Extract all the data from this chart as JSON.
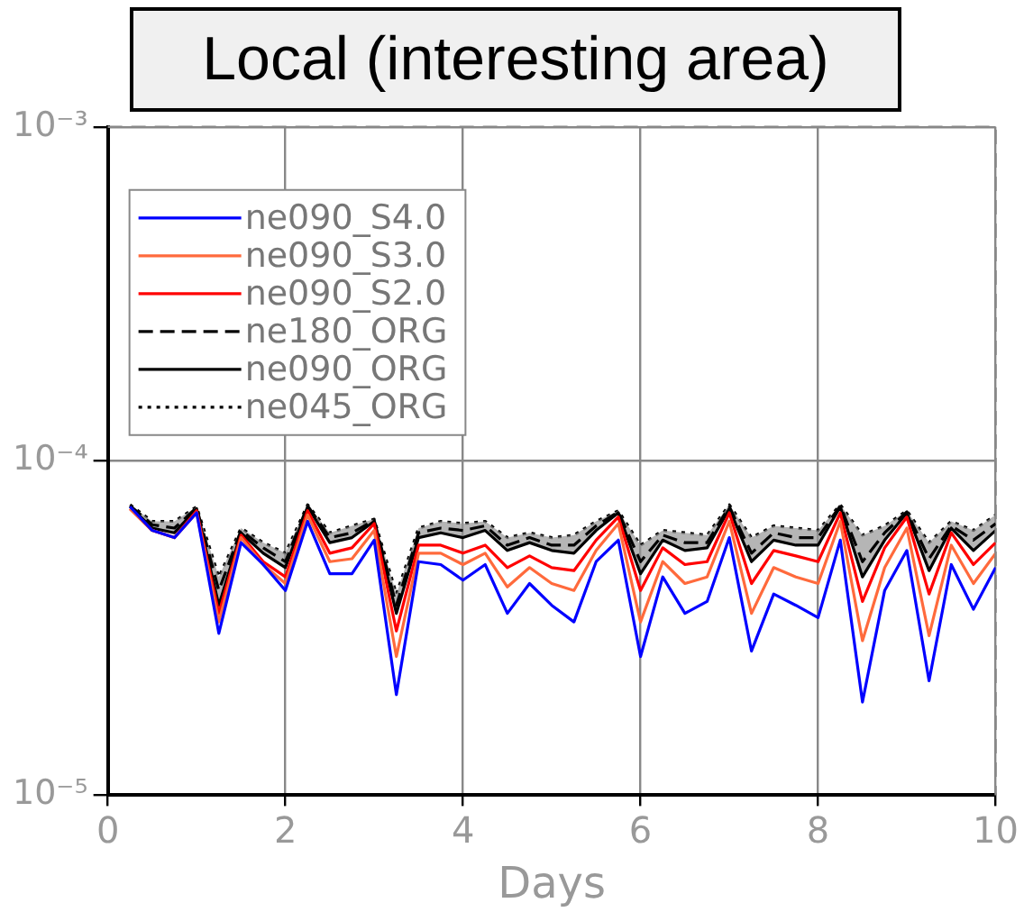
{
  "chart_data": {
    "type": "line",
    "title": "Local (interesting area)",
    "xlabel": "Days",
    "x": [
      0.25,
      0.5,
      0.75,
      1,
      1.25,
      1.5,
      1.75,
      2,
      2.25,
      2.5,
      2.75,
      3,
      3.25,
      3.5,
      3.75,
      4,
      4.25,
      4.5,
      4.75,
      5,
      5.25,
      5.5,
      5.75,
      6,
      6.25,
      6.5,
      6.75,
      7,
      7.25,
      7.5,
      7.75,
      8,
      8.25,
      8.5,
      8.75,
      9,
      9.25,
      9.5,
      9.75,
      10
    ],
    "xlim": [
      0,
      10
    ],
    "xticks": [
      0,
      2,
      4,
      6,
      8,
      10
    ],
    "ylim": [
      1e-05,
      0.001
    ],
    "yticks": [
      {
        "value": 1e-05,
        "label": "10⁻⁵"
      },
      {
        "value": 0.0001,
        "label": "10⁻⁴"
      },
      {
        "value": 0.001,
        "label": "10⁻³"
      }
    ],
    "log": "y",
    "grid": true,
    "legend": "top left",
    "series": [
      {
        "name": "ne090_S4.0",
        "color": "#0000ff",
        "line_style": "solid",
        "values": [
          7.3e-05,
          6.2e-05,
          5.9e-05,
          7e-05,
          3.05e-05,
          5.7e-05,
          4.9e-05,
          4.1e-05,
          6.6e-05,
          4.6e-05,
          4.6e-05,
          5.8e-05,
          2e-05,
          5e-05,
          4.9e-05,
          4.4e-05,
          4.9e-05,
          3.5e-05,
          4.3e-05,
          3.7e-05,
          3.3e-05,
          5e-05,
          5.8e-05,
          2.6e-05,
          4.5e-05,
          3.5e-05,
          3.8e-05,
          5.9e-05,
          2.7e-05,
          4e-05,
          3.7e-05,
          3.4e-05,
          5.8e-05,
          1.9e-05,
          4.1e-05,
          5.4e-05,
          2.2e-05,
          4.9e-05,
          3.6e-05,
          4.8e-05
        ]
      },
      {
        "name": "ne090_S3.0",
        "color": "#ff6a3c",
        "line_style": "solid",
        "values": [
          7.2e-05,
          6.2e-05,
          5.9e-05,
          7e-05,
          3.3e-05,
          5.9e-05,
          4.9e-05,
          4.3e-05,
          6.9e-05,
          5e-05,
          5.1e-05,
          6.2e-05,
          2.6e-05,
          5.3e-05,
          5.3e-05,
          4.9e-05,
          5.3e-05,
          4.2e-05,
          4.8e-05,
          4.3e-05,
          4.1e-05,
          5.4e-05,
          6.5e-05,
          3.3e-05,
          5e-05,
          4.3e-05,
          4.5e-05,
          6.6e-05,
          3.5e-05,
          4.8e-05,
          4.5e-05,
          4.3e-05,
          6.6e-05,
          2.9e-05,
          4.8e-05,
          6.3e-05,
          3e-05,
          5.6e-05,
          4.3e-05,
          5.3e-05
        ]
      },
      {
        "name": "ne090_S2.0",
        "color": "#ff0000",
        "line_style": "solid",
        "values": [
          7.2e-05,
          6.2e-05,
          5.9e-05,
          7.1e-05,
          3.5e-05,
          6e-05,
          5e-05,
          4.5e-05,
          7.1e-05,
          5.3e-05,
          5.5e-05,
          6.5e-05,
          3.1e-05,
          5.6e-05,
          5.6e-05,
          5.3e-05,
          5.6e-05,
          4.8e-05,
          5.2e-05,
          4.8e-05,
          4.7e-05,
          5.8e-05,
          6.8e-05,
          4.1e-05,
          5.5e-05,
          4.9e-05,
          5e-05,
          7e-05,
          4.3e-05,
          5.4e-05,
          5.2e-05,
          5e-05,
          7e-05,
          3.8e-05,
          5.5e-05,
          6.8e-05,
          4e-05,
          6.1e-05,
          4.9e-05,
          5.7e-05
        ]
      },
      {
        "name": "ne180_ORG",
        "color": "#000000",
        "line_style": "dashed",
        "values": [
          7.35e-05,
          6.45e-05,
          6.3e-05,
          7.25e-05,
          4.1e-05,
          6.2e-05,
          5.5e-05,
          5e-05,
          7.35e-05,
          5.9e-05,
          6.1e-05,
          6.65e-05,
          3.7e-05,
          6.1e-05,
          6.3e-05,
          6.2e-05,
          6.4e-05,
          5.6e-05,
          5.9e-05,
          5.6e-05,
          5.6e-05,
          6.4e-05,
          7.05e-05,
          5e-05,
          6e-05,
          5.7e-05,
          5.7e-05,
          7.3e-05,
          5.3e-05,
          6.1e-05,
          5.9e-05,
          5.9e-05,
          7.35e-05,
          5e-05,
          6.1e-05,
          7.05e-05,
          5.1e-05,
          6.4e-05,
          5.8e-05,
          6.5e-05
        ]
      },
      {
        "name": "ne090_ORG",
        "color": "#000000",
        "line_style": "solid",
        "values": [
          7.3e-05,
          6.3e-05,
          6.1e-05,
          7.2e-05,
          3.7e-05,
          6.1e-05,
          5.3e-05,
          4.8e-05,
          7.3e-05,
          5.7e-05,
          5.9e-05,
          6.6e-05,
          3.5e-05,
          5.9e-05,
          6.1e-05,
          5.9e-05,
          6.2e-05,
          5.4e-05,
          5.7e-05,
          5.4e-05,
          5.3e-05,
          6.2e-05,
          7e-05,
          4.6e-05,
          5.8e-05,
          5.4e-05,
          5.5e-05,
          7.2e-05,
          5e-05,
          5.8e-05,
          5.6e-05,
          5.6e-05,
          7.3e-05,
          4.5e-05,
          5.8e-05,
          7e-05,
          4.7e-05,
          6.3e-05,
          5.4e-05,
          6.2e-05
        ]
      },
      {
        "name": "ne045_ORG",
        "color": "#000000",
        "line_style": "dotted",
        "values": [
          7.4e-05,
          6.6e-05,
          6.6e-05,
          7.3e-05,
          4.5e-05,
          6.3e-05,
          5.7e-05,
          5.3e-05,
          7.4e-05,
          6.1e-05,
          6.4e-05,
          6.7e-05,
          4e-05,
          6.3e-05,
          6.6e-05,
          6.5e-05,
          6.6e-05,
          5.9e-05,
          6.1e-05,
          5.9e-05,
          6e-05,
          6.6e-05,
          7.1e-05,
          5.6e-05,
          6.2e-05,
          6.1e-05,
          6e-05,
          7.4e-05,
          5.9e-05,
          6.4e-05,
          6.3e-05,
          6.2e-05,
          7.4e-05,
          6e-05,
          6.4e-05,
          7.1e-05,
          5.7e-05,
          6.6e-05,
          6.2e-05,
          6.9e-05
        ],
        "lower": [
          7.3e-05,
          6.3e-05,
          6.1e-05,
          7.2e-05,
          3.7e-05,
          6.1e-05,
          5.3e-05,
          4.8e-05,
          7.3e-05,
          5.7e-05,
          5.9e-05,
          6.6e-05,
          3.5e-05,
          5.9e-05,
          6.1e-05,
          5.9e-05,
          6.2e-05,
          5.4e-05,
          5.7e-05,
          5.4e-05,
          5.3e-05,
          6.2e-05,
          7e-05,
          4.6e-05,
          5.8e-05,
          5.4e-05,
          5.5e-05,
          7.2e-05,
          5e-05,
          5.8e-05,
          5.6e-05,
          5.6e-05,
          7.3e-05,
          4.5e-05,
          5.8e-05,
          7e-05,
          4.7e-05,
          6.3e-05,
          5.4e-05,
          6.2e-05
        ],
        "upper": [
          7.4e-05,
          6.6e-05,
          6.6e-05,
          7.3e-05,
          4.5e-05,
          6.3e-05,
          5.7e-05,
          5.3e-05,
          7.4e-05,
          6.1e-05,
          6.4e-05,
          6.7e-05,
          4e-05,
          6.3e-05,
          6.6e-05,
          6.5e-05,
          6.6e-05,
          5.9e-05,
          6.1e-05,
          5.9e-05,
          6e-05,
          6.6e-05,
          7.1e-05,
          5.6e-05,
          6.2e-05,
          6.1e-05,
          6e-05,
          7.4e-05,
          5.9e-05,
          6.4e-05,
          6.3e-05,
          6.2e-05,
          7.4e-05,
          6e-05,
          6.4e-05,
          7.1e-05,
          5.7e-05,
          6.6e-05,
          6.2e-05,
          6.9e-05
        ]
      }
    ]
  }
}
